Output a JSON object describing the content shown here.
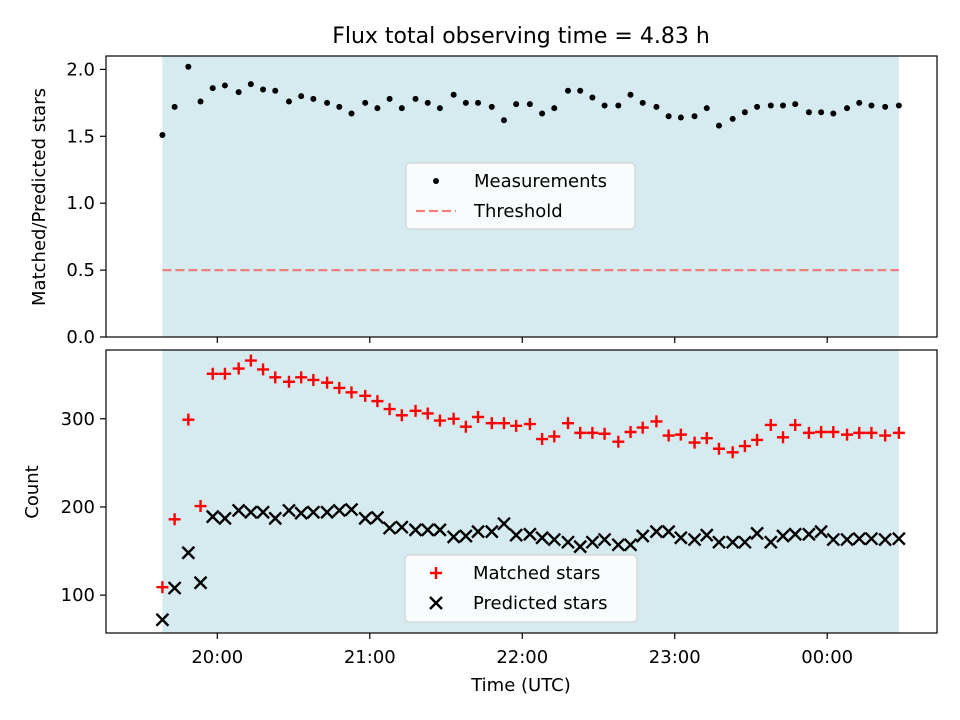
{
  "chart_data": [
    {
      "type": "scatter",
      "title": "Flux total observing time = 4.83 h",
      "xlabel": "",
      "ylabel": "Matched/Predicted stars",
      "ylim": [
        0,
        2.1
      ],
      "yticks": [
        0.0,
        0.5,
        1.0,
        1.5,
        2.0
      ],
      "ytick_labels": [
        "0.0",
        "0.5",
        "1.0",
        "1.5",
        "2.0"
      ],
      "legend_position": "center",
      "shaded_region": {
        "x_start": 19.64,
        "x_end": 24.47,
        "color": "#d5ebf0"
      },
      "series": [
        {
          "name": "Measurements",
          "marker": "dot",
          "color": "#000000",
          "x": [
            19.64,
            19.72,
            19.81,
            19.89,
            19.97,
            20.05,
            20.14,
            20.22,
            20.3,
            20.38,
            20.47,
            20.55,
            20.63,
            20.72,
            20.8,
            20.88,
            20.97,
            21.05,
            21.13,
            21.21,
            21.3,
            21.38,
            21.46,
            21.55,
            21.63,
            21.71,
            21.8,
            21.88,
            21.96,
            22.05,
            22.13,
            22.21,
            22.3,
            22.38,
            22.46,
            22.54,
            22.63,
            22.71,
            22.79,
            22.88,
            22.96,
            23.04,
            23.13,
            23.21,
            23.29,
            23.38,
            23.46,
            23.54,
            23.63,
            23.71,
            23.79,
            23.88,
            23.96,
            24.04,
            24.13,
            24.21,
            24.29,
            24.38,
            24.47
          ],
          "y": [
            1.51,
            1.72,
            2.02,
            1.76,
            1.86,
            1.88,
            1.83,
            1.89,
            1.85,
            1.84,
            1.76,
            1.8,
            1.78,
            1.75,
            1.72,
            1.67,
            1.75,
            1.71,
            1.78,
            1.71,
            1.78,
            1.75,
            1.71,
            1.81,
            1.75,
            1.75,
            1.72,
            1.62,
            1.74,
            1.74,
            1.67,
            1.71,
            1.84,
            1.84,
            1.79,
            1.73,
            1.73,
            1.81,
            1.75,
            1.72,
            1.65,
            1.64,
            1.65,
            1.71,
            1.58,
            1.63,
            1.68,
            1.72,
            1.73,
            1.73,
            1.74,
            1.68,
            1.68,
            1.67,
            1.71,
            1.75,
            1.73,
            1.72,
            1.73
          ]
        },
        {
          "name": "Threshold",
          "marker": "dashed-line",
          "color": "#f08080",
          "x": [
            19.64,
            24.47
          ],
          "y": [
            0.5,
            0.5
          ]
        }
      ]
    },
    {
      "type": "scatter",
      "title": "",
      "xlabel": "Time (UTC)",
      "ylabel": "Count",
      "ylim": [
        57,
        378
      ],
      "yticks": [
        100,
        200,
        300
      ],
      "ytick_labels": [
        "100",
        "200",
        "300"
      ],
      "xlim": [
        19.27,
        24.72
      ],
      "xticks": [
        20,
        21,
        22,
        23,
        24
      ],
      "xtick_labels": [
        "20:00",
        "21:00",
        "22:00",
        "23:00",
        "00:00"
      ],
      "legend_position": "lower center",
      "shaded_region": {
        "x_start": 19.64,
        "x_end": 24.47,
        "color": "#d5ebf0"
      },
      "series": [
        {
          "name": "Matched stars",
          "marker": "plus",
          "color": "#ff0000",
          "x": [
            19.64,
            19.72,
            19.81,
            19.89,
            19.97,
            20.05,
            20.14,
            20.22,
            20.3,
            20.38,
            20.47,
            20.55,
            20.63,
            20.72,
            20.8,
            20.88,
            20.97,
            21.05,
            21.13,
            21.21,
            21.3,
            21.38,
            21.46,
            21.55,
            21.63,
            21.71,
            21.8,
            21.88,
            21.96,
            22.05,
            22.13,
            22.21,
            22.3,
            22.38,
            22.46,
            22.54,
            22.63,
            22.71,
            22.79,
            22.88,
            22.96,
            23.04,
            23.13,
            23.21,
            23.29,
            23.38,
            23.46,
            23.54,
            23.63,
            23.71,
            23.79,
            23.88,
            23.96,
            24.04,
            24.13,
            24.21,
            24.29,
            24.38,
            24.47
          ],
          "y": [
            109,
            186,
            299,
            201,
            351,
            351,
            357,
            366,
            356,
            347,
            342,
            347,
            344,
            341,
            335,
            330,
            326,
            320,
            311,
            304,
            309,
            306,
            298,
            300,
            291,
            302,
            295,
            295,
            292,
            294,
            277,
            280,
            295,
            284,
            284,
            283,
            274,
            285,
            290,
            297,
            281,
            282,
            273,
            278,
            266,
            262,
            269,
            276,
            293,
            279,
            293,
            284,
            285,
            285,
            282,
            284,
            284,
            281,
            284
          ]
        },
        {
          "name": "Predicted stars",
          "marker": "x",
          "color": "#000000",
          "x": [
            19.64,
            19.72,
            19.81,
            19.89,
            19.97,
            20.05,
            20.14,
            20.22,
            20.3,
            20.38,
            20.47,
            20.55,
            20.63,
            20.72,
            20.8,
            20.88,
            20.97,
            21.05,
            21.13,
            21.21,
            21.3,
            21.38,
            21.46,
            21.55,
            21.63,
            21.71,
            21.8,
            21.88,
            21.96,
            22.05,
            22.13,
            22.21,
            22.3,
            22.38,
            22.46,
            22.54,
            22.63,
            22.71,
            22.79,
            22.88,
            22.96,
            23.04,
            23.13,
            23.21,
            23.29,
            23.38,
            23.46,
            23.54,
            23.63,
            23.71,
            23.79,
            23.88,
            23.96,
            24.04,
            24.13,
            24.21,
            24.29,
            24.38,
            24.47
          ],
          "y": [
            72,
            108,
            148,
            114,
            189,
            187,
            196,
            194,
            194,
            187,
            196,
            193,
            194,
            194,
            196,
            197,
            187,
            188,
            176,
            177,
            174,
            174,
            174,
            166,
            167,
            172,
            172,
            181,
            168,
            169,
            165,
            163,
            160,
            155,
            160,
            163,
            157,
            157,
            167,
            172,
            172,
            165,
            163,
            168,
            160,
            160,
            160,
            170,
            160,
            167,
            169,
            169,
            172,
            163,
            163,
            164,
            164,
            163,
            164
          ]
        }
      ]
    }
  ]
}
